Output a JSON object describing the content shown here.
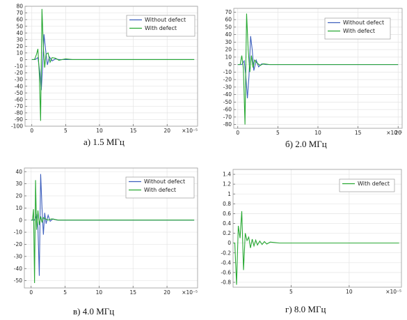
{
  "colors": {
    "without": "#3d5fbd",
    "with": "#27a832",
    "grid": "#e4e4e4",
    "frame": "#9a9a9a"
  },
  "chart_data": [
    {
      "type": "line",
      "caption": "а) 1.5 МГц",
      "x_multiplier": "×10⁻⁵",
      "xlim": [
        -1,
        24.5
      ],
      "ylim": [
        -100,
        80
      ],
      "xticks": [
        0,
        5,
        10,
        15,
        20
      ],
      "yticks": [
        80,
        70,
        60,
        50,
        40,
        30,
        20,
        10,
        0,
        -10,
        -20,
        -30,
        -40,
        -50,
        -60,
        -70,
        -80,
        -90,
        -100
      ],
      "legend_position": "top-right",
      "series": [
        {
          "name": "Without defect",
          "color_key": "without",
          "x": [
            0,
            0.5,
            0.9,
            1.2,
            1.4,
            1.6,
            1.8,
            2.0,
            2.3,
            2.6,
            3.0,
            3.5,
            4.0,
            6,
            8,
            10,
            12,
            14,
            16,
            18,
            20,
            22,
            24
          ],
          "y": [
            0,
            0,
            3,
            -20,
            -46,
            -8,
            38,
            18,
            -8,
            4,
            -2,
            1,
            0,
            0,
            0,
            0,
            0,
            0,
            0,
            0,
            0,
            0,
            0
          ]
        },
        {
          "name": "With defect",
          "color_key": "with",
          "x": [
            0,
            0.4,
            0.7,
            0.9,
            1.1,
            1.3,
            1.5,
            1.7,
            1.9,
            2.1,
            2.4,
            2.7,
            3.0,
            3.5,
            4.0,
            5,
            6,
            8,
            10,
            12,
            14,
            16,
            18,
            20,
            22,
            24
          ],
          "y": [
            0,
            0,
            8,
            16,
            -20,
            -92,
            76,
            20,
            -12,
            8,
            10,
            -4,
            3,
            2,
            -1,
            1,
            0,
            0,
            0,
            0,
            0,
            0,
            0,
            0,
            0,
            0
          ]
        }
      ]
    },
    {
      "type": "line",
      "caption": "б) 2.0 МГц",
      "x_multiplier": "×10⁻⁵",
      "xlim": [
        -0.5,
        20.5
      ],
      "ylim": [
        -85,
        75
      ],
      "xticks": [
        0,
        5,
        10,
        15,
        20
      ],
      "yticks": [
        70,
        60,
        50,
        40,
        30,
        20,
        10,
        0,
        -10,
        -20,
        -30,
        -40,
        -50,
        -60,
        -70,
        -80
      ],
      "legend_position": "top-right",
      "series": [
        {
          "name": "Without defect",
          "color_key": "without",
          "x": [
            0,
            0.5,
            0.8,
            1.0,
            1.2,
            1.4,
            1.6,
            1.8,
            2.0,
            2.3,
            2.6,
            3.0,
            3.5,
            5,
            7,
            10,
            13,
            16,
            19,
            20
          ],
          "y": [
            0,
            0,
            5,
            -15,
            -45,
            -15,
            38,
            20,
            -8,
            6,
            -3,
            1,
            0,
            0,
            0,
            0,
            0,
            0,
            0,
            0
          ]
        },
        {
          "name": "With defect",
          "color_key": "with",
          "x": [
            0,
            0.3,
            0.5,
            0.7,
            0.9,
            1.1,
            1.3,
            1.5,
            1.7,
            1.9,
            2.1,
            2.4,
            2.8,
            3.2,
            4,
            6,
            8,
            10,
            13,
            16,
            19,
            20
          ],
          "y": [
            0,
            0,
            12,
            -5,
            -80,
            68,
            20,
            -10,
            12,
            -4,
            6,
            2,
            -1,
            1,
            0,
            0,
            0,
            0,
            0,
            0,
            0,
            0
          ]
        }
      ]
    },
    {
      "type": "line",
      "caption": "в) 4.0 МГц",
      "x_multiplier": "×10⁻⁵",
      "xlim": [
        -1,
        24.5
      ],
      "ylim": [
        -56,
        43
      ],
      "xticks": [
        0,
        5,
        10,
        15,
        20
      ],
      "yticks": [
        40,
        30,
        20,
        10,
        0,
        -10,
        -20,
        -30,
        -40,
        -50
      ],
      "legend_position": "top-right",
      "series": [
        {
          "name": "Without defect",
          "color_key": "without",
          "x": [
            0,
            0.5,
            0.8,
            1.0,
            1.2,
            1.4,
            1.6,
            1.8,
            2.0,
            2.2,
            2.5,
            2.8,
            3.2,
            3.8,
            5,
            8,
            12,
            16,
            20,
            24
          ],
          "y": [
            0,
            0,
            4,
            -6,
            -46,
            38,
            10,
            -12,
            6,
            -3,
            4,
            -1,
            1,
            0,
            0,
            0,
            0,
            0,
            0,
            0
          ]
        },
        {
          "name": "With defect",
          "color_key": "with",
          "x": [
            0,
            0.2,
            0.35,
            0.5,
            0.65,
            0.8,
            1.0,
            1.2,
            1.4,
            1.6,
            1.8,
            2.1,
            2.5,
            3.0,
            4,
            6,
            9,
            12,
            16,
            20,
            24
          ],
          "y": [
            0,
            0,
            9,
            -52,
            33,
            -8,
            8,
            -4,
            3,
            -2,
            2,
            1,
            0,
            1,
            0,
            0,
            0,
            0,
            0,
            0,
            0
          ]
        }
      ]
    },
    {
      "type": "line",
      "caption": "г) 8.0 МГц",
      "x_multiplier": "×10⁻⁵",
      "xlim": [
        0,
        14.5
      ],
      "ylim": [
        -0.9,
        1.5
      ],
      "xticks": [
        5,
        10
      ],
      "yticks": [
        1.4,
        1.2,
        1,
        0.8,
        0.6,
        0.4,
        0.2,
        0,
        -0.2,
        -0.4,
        -0.6,
        -0.8
      ],
      "legend_position": "top-right",
      "series": [
        {
          "name": "With defect",
          "color_key": "with",
          "x": [
            0,
            0.15,
            0.3,
            0.45,
            0.6,
            0.75,
            0.9,
            1.05,
            1.2,
            1.35,
            1.5,
            1.65,
            1.8,
            1.95,
            2.1,
            2.3,
            2.5,
            2.7,
            2.9,
            3.2,
            3.6,
            4,
            5,
            7,
            9,
            11,
            13,
            14.3
          ],
          "y": [
            0,
            0,
            -0.85,
            0.35,
            0.1,
            0.65,
            -0.55,
            0.2,
            0.05,
            0.12,
            -0.1,
            0.08,
            -0.06,
            0.06,
            -0.04,
            0.04,
            -0.03,
            0.03,
            -0.02,
            0.02,
            0.01,
            0,
            0,
            0,
            0,
            0,
            0,
            0
          ]
        }
      ]
    }
  ]
}
